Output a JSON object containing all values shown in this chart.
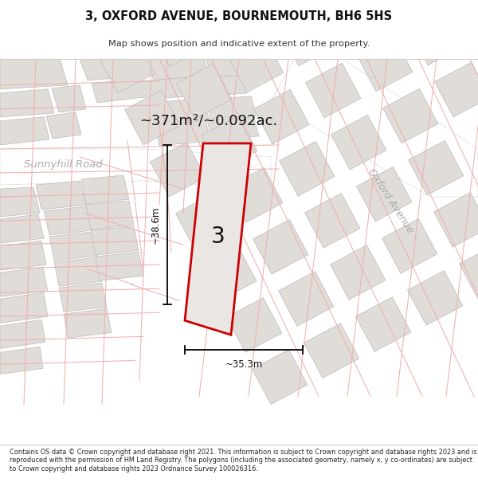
{
  "title_line1": "3, OXFORD AVENUE, BOURNEMOUTH, BH6 5HS",
  "title_line2": "Map shows position and indicative extent of the property.",
  "area_label": "~371m²/~0.092ac.",
  "property_number": "3",
  "dim_width": "~35.3m",
  "dim_height": "~38.6m",
  "road_label1": "Sunnyhill Road",
  "road_label2": "Oxford Avenue",
  "footer_text": "Contains OS data © Crown copyright and database right 2021. This information is subject to Crown copyright and database rights 2023 and is reproduced with the permission of HM Land Registry. The polygons (including the associated geometry, namely x, y co-ordinates) are subject to Crown copyright and database rights 2023 Ordnance Survey 100026316.",
  "map_bg": "#f2eeeb",
  "road_fill": "#ffffff",
  "block_fill": "#e0dcd8",
  "block_edge": "#bbbbbb",
  "pink": "#f0b0b0",
  "red": "#cc0000",
  "prop_fill": "#eae6e3",
  "gray_text": "#aaaaaa",
  "dark_text": "#222222"
}
